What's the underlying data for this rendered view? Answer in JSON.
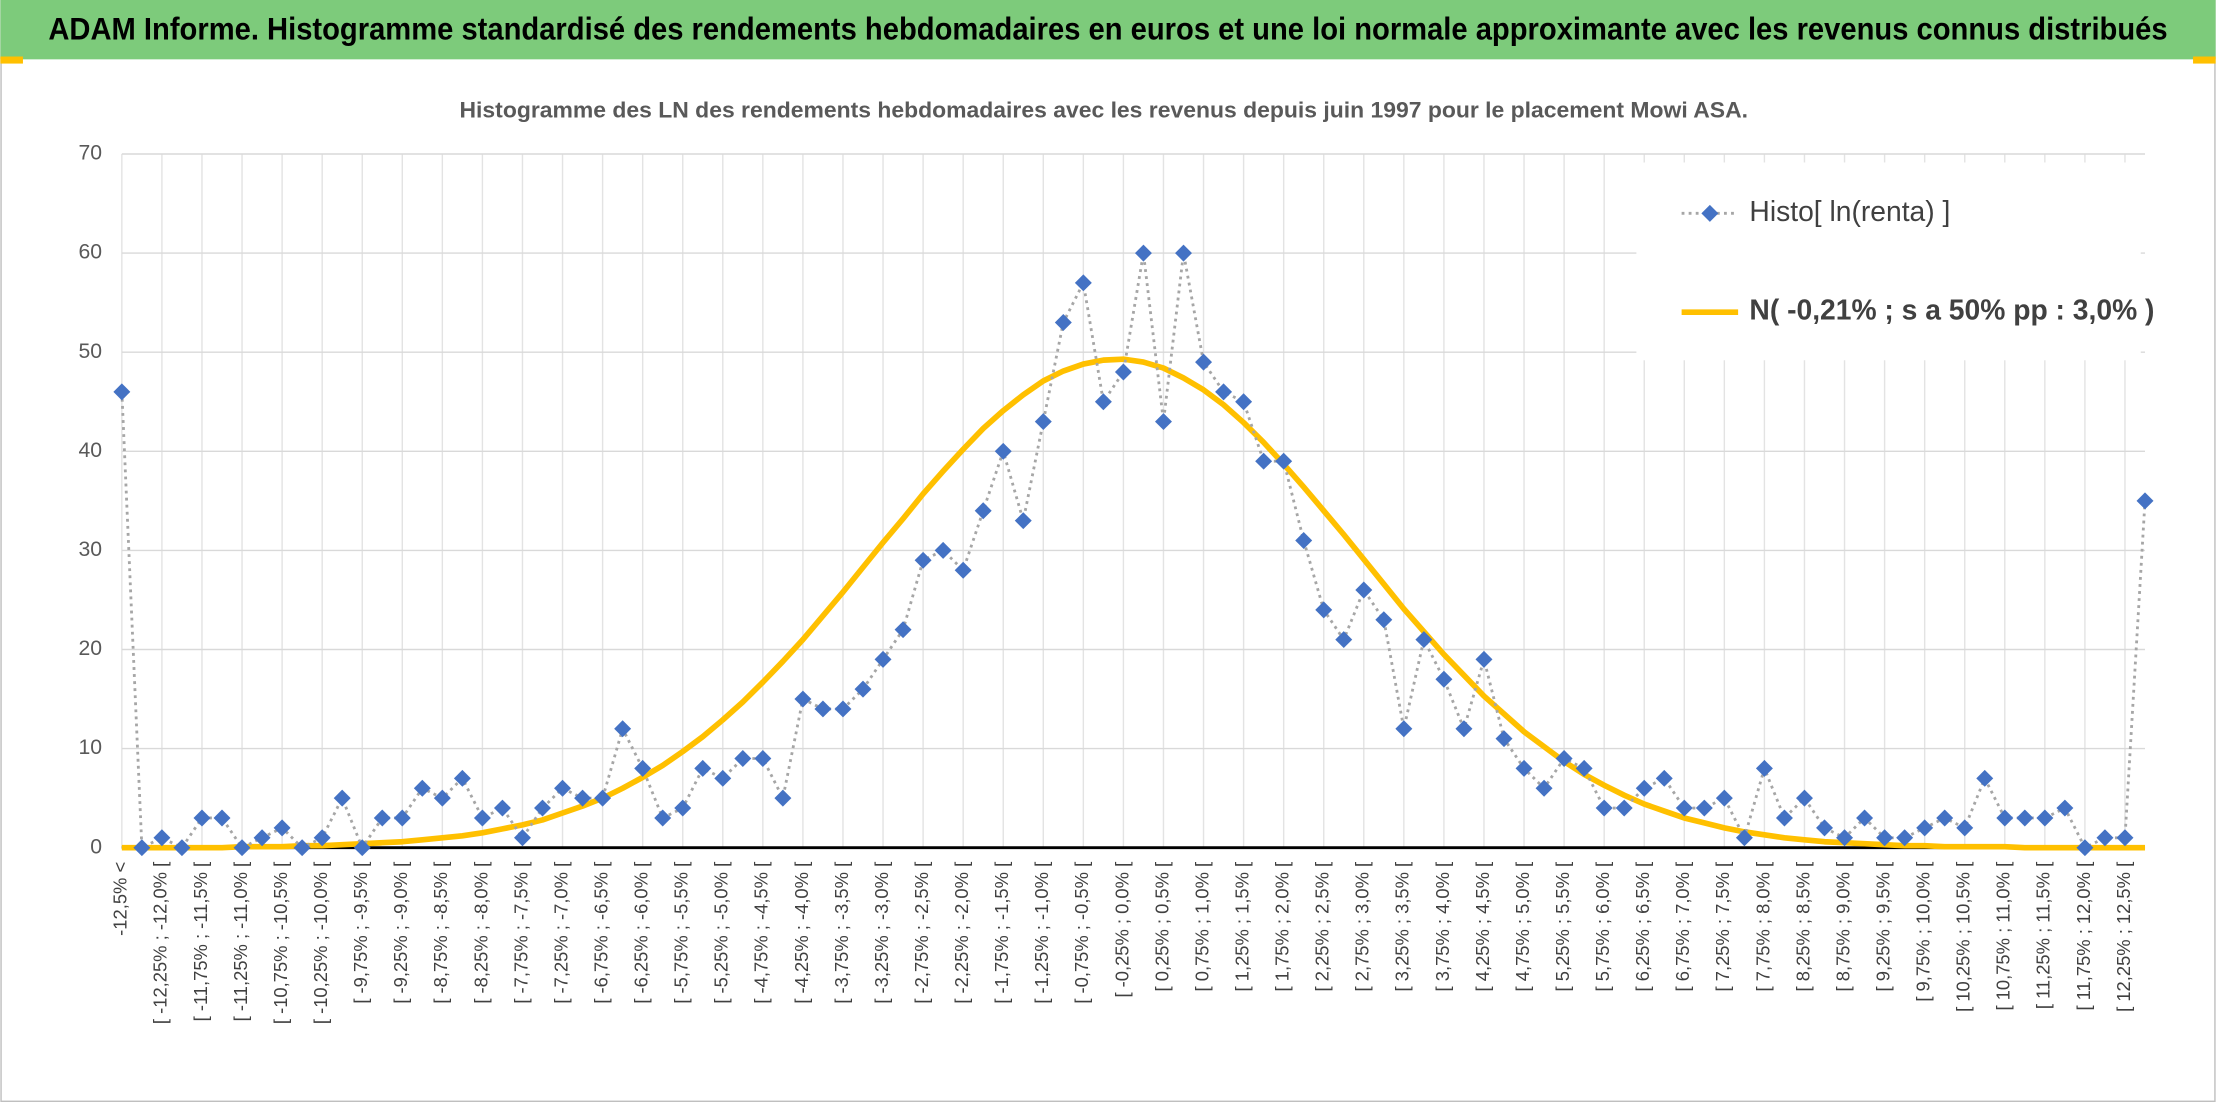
{
  "header": {
    "title": "ADAM Informe. Histogramme standardisé des rendements hebdomadaires en euros et une loi normale approximante avec les revenus connus distribués"
  },
  "chart_data": {
    "type": "line",
    "title": "Histogramme des LN des rendements hebdomadaires avec les revenus depuis juin 1997 pour le placement Mowi ASA.",
    "categories": [
      "-12,5% <",
      null,
      "[ -12,25% ; -12,0% [",
      null,
      "[ -11,75% ; -11,5% [",
      null,
      "[ -11,25% ; -11,0% [",
      null,
      "[ -10,75% ; -10,5% [",
      null,
      "[ -10,25% ; -10,0% [",
      null,
      "[ -9,75% ; -9,5% [",
      null,
      "[ -9,25% ; -9,0% [",
      null,
      "[ -8,75% ; -8,5% [",
      null,
      "[ -8,25% ; -8,0% [",
      null,
      "[ -7,75% ; -7,5% [",
      null,
      "[ -7,25% ; -7,0% [",
      null,
      "[ -6,75% ; -6,5% [",
      null,
      "[ -6,25% ; -6,0% [",
      null,
      "[ -5,75% ; -5,5% [",
      null,
      "[ -5,25% ; -5,0% [",
      null,
      "[ -4,75% ; -4,5% [",
      null,
      "[ -4,25% ; -4,0% [",
      null,
      "[ -3,75% ; -3,5% [",
      null,
      "[ -3,25% ; -3,0% [",
      null,
      "[ -2,75% ; -2,5% [",
      null,
      "[ -2,25% ; -2,0% [",
      null,
      "[ -1,75% ; -1,5% [",
      null,
      "[ -1,25% ; -1,0% [",
      null,
      "[ -0,75% ; -0,5% [",
      null,
      "[ -0,25% ; 0,0% [",
      null,
      "[ 0,25% ; 0,5% [",
      null,
      "[ 0,75% ; 1,0% [",
      null,
      "[ 1,25% ; 1,5% [",
      null,
      "[ 1,75% ; 2,0% [",
      null,
      "[ 2,25% ; 2,5% [",
      null,
      "[ 2,75% ; 3,0% [",
      null,
      "[ 3,25% ; 3,5% [",
      null,
      "[ 3,75% ; 4,0% [",
      null,
      "[ 4,25% ; 4,5% [",
      null,
      "[ 4,75% ; 5,0% [",
      null,
      "[ 5,25% ; 5,5% [",
      null,
      "[ 5,75% ; 6,0% [",
      null,
      "[ 6,25% ; 6,5% [",
      null,
      "[ 6,75% ; 7,0% [",
      null,
      "[ 7,25% ; 7,5% [",
      null,
      "[ 7,75% ; 8,0% [",
      null,
      "[ 8,25% ; 8,5% [",
      null,
      "[ 8,75% ; 9,0% [",
      null,
      "[ 9,25% ; 9,5% [",
      null,
      "[ 9,75% ; 10,0% [",
      null,
      "[ 10,25% ; 10,5% [",
      null,
      "[ 10,75% ; 11,0% [",
      null,
      "[ 11,25% ; 11,5% [",
      null,
      "[ 11,75% ; 12,0% [",
      null,
      "[ 12,25% ; 12,5% [",
      null
    ],
    "series": [
      {
        "name": "Histo[ ln(renta) ]",
        "color": "#4472c4",
        "line_color": "#a6a6a6",
        "dash": "dotted",
        "marker": "diamond",
        "values": [
          46,
          0,
          1,
          0,
          3,
          3,
          0,
          1,
          2,
          0,
          1,
          5,
          0,
          3,
          3,
          6,
          5,
          7,
          3,
          4,
          1,
          4,
          6,
          5,
          5,
          12,
          8,
          3,
          4,
          8,
          7,
          9,
          9,
          5,
          15,
          14,
          14,
          16,
          19,
          22,
          29,
          30,
          28,
          34,
          40,
          33,
          43,
          53,
          57,
          45,
          48,
          60,
          43,
          60,
          49,
          46,
          45,
          39,
          39,
          31,
          24,
          21,
          26,
          23,
          12,
          21,
          17,
          12,
          19,
          11,
          8,
          6,
          9,
          8,
          4,
          4,
          6,
          7,
          4,
          4,
          5,
          1,
          8,
          3,
          5,
          2,
          1,
          3,
          1,
          1,
          2,
          3,
          2,
          7,
          3,
          3,
          3,
          4,
          0,
          1,
          1,
          35
        ]
      },
      {
        "name": "N( -0,21% ; s a 50% pp : 3,0% )",
        "color": "#ffc000",
        "dash": "solid",
        "marker": "none",
        "values": [
          0.0,
          0.0,
          0.0,
          0.0,
          0.0,
          0.0,
          0.1,
          0.1,
          0.1,
          0.2,
          0.2,
          0.3,
          0.4,
          0.5,
          0.6,
          0.8,
          1.0,
          1.2,
          1.5,
          1.9,
          2.3,
          2.8,
          3.5,
          4.2,
          5.0,
          6.0,
          7.1,
          8.3,
          9.7,
          11.2,
          12.9,
          14.7,
          16.7,
          18.8,
          21.0,
          23.4,
          25.8,
          28.3,
          30.8,
          33.2,
          35.7,
          38.0,
          40.2,
          42.3,
          44.1,
          45.7,
          47.1,
          48.1,
          48.8,
          49.2,
          49.3,
          49.0,
          48.4,
          47.4,
          46.2,
          44.7,
          42.9,
          40.9,
          38.7,
          36.4,
          34.0,
          31.6,
          29.1,
          26.6,
          24.1,
          21.8,
          19.5,
          17.4,
          15.3,
          13.5,
          11.7,
          10.2,
          8.7,
          7.4,
          6.3,
          5.3,
          4.4,
          3.7,
          3.0,
          2.5,
          2.0,
          1.6,
          1.3,
          1.0,
          0.8,
          0.6,
          0.5,
          0.4,
          0.3,
          0.2,
          0.2,
          0.1,
          0.1,
          0.1,
          0.1,
          0.0,
          0.0,
          0.0,
          0.0,
          0.0,
          0.0,
          0.0
        ]
      }
    ],
    "ylim": [
      0,
      70
    ],
    "yticks": [
      0,
      10,
      20,
      30,
      40,
      50,
      60,
      70
    ],
    "grid": true,
    "legend": "top-right"
  }
}
